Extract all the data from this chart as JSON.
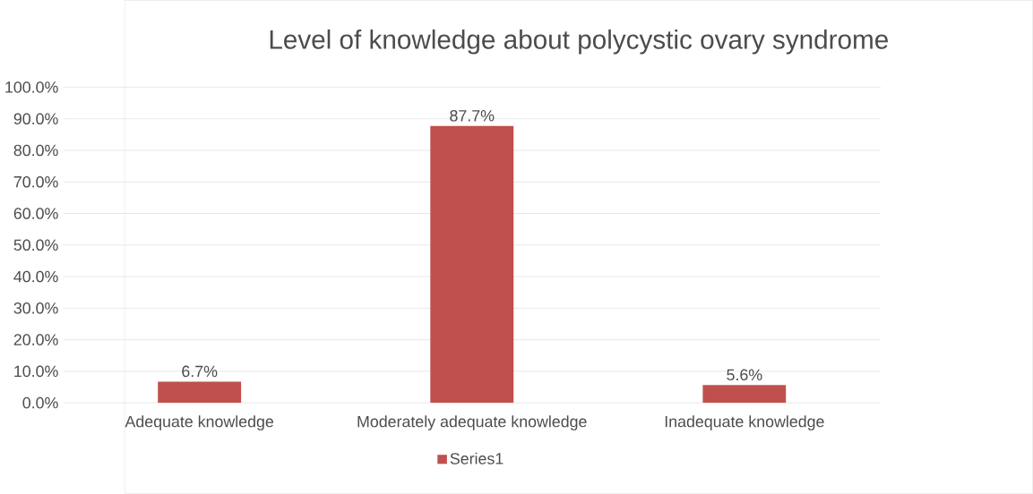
{
  "chart_data": {
    "type": "bar",
    "title": "Level of knowledge  about polycystic ovary syndrome",
    "categories": [
      "Adequate knowledge",
      "Moderately adequate knowledge",
      "Inadequate knowledge"
    ],
    "series": [
      {
        "name": "Series1",
        "color": "#c0504d",
        "values": [
          6.7,
          87.7,
          5.6
        ],
        "value_labels": [
          "6.7%",
          "87.7%",
          "5.6%"
        ]
      }
    ],
    "ylim": [
      0,
      100
    ],
    "yticks": [
      {
        "value": 0,
        "label": "0.0%"
      },
      {
        "value": 10,
        "label": "10.0%"
      },
      {
        "value": 20,
        "label": "20.0%"
      },
      {
        "value": 30,
        "label": "30.0%"
      },
      {
        "value": 40,
        "label": "40.0%"
      },
      {
        "value": 50,
        "label": "50.0%"
      },
      {
        "value": 60,
        "label": "60.0%"
      },
      {
        "value": 70,
        "label": "70.0%"
      },
      {
        "value": 80,
        "label": "80.0%"
      },
      {
        "value": 90,
        "label": "90.0%"
      },
      {
        "value": 100,
        "label": "100.0%"
      }
    ],
    "grid": "y",
    "legend": "bottom"
  }
}
